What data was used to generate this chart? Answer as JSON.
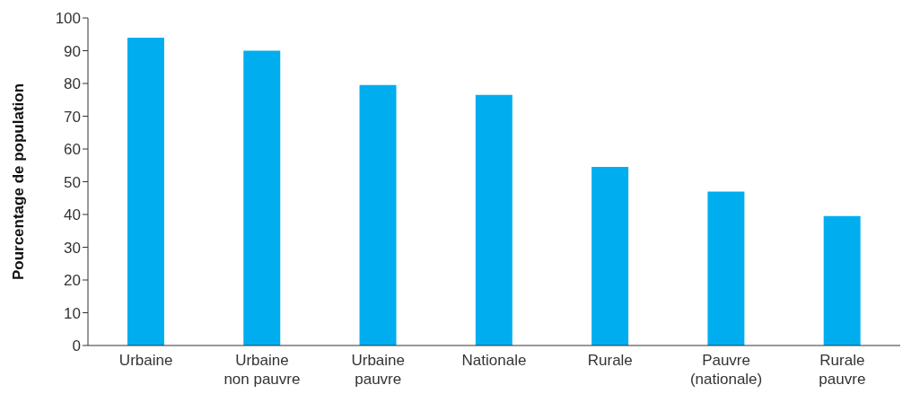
{
  "chart_data": {
    "type": "bar",
    "ylabel": "Pourcentage de population",
    "categories": [
      "Urbaine",
      "Urbaine non pauvre",
      "Urbaine pauvre",
      "Nationale",
      "Rurale",
      "Pauvre (nationale)",
      "Rurale pauvre"
    ],
    "values": [
      94,
      90,
      79.5,
      76.5,
      54.5,
      47,
      39.5
    ],
    "color": "#00aeef",
    "ylim": [
      0,
      100
    ],
    "yticks": [
      0,
      10,
      20,
      30,
      40,
      50,
      60,
      70,
      80,
      90,
      100
    ],
    "grid": false
  }
}
